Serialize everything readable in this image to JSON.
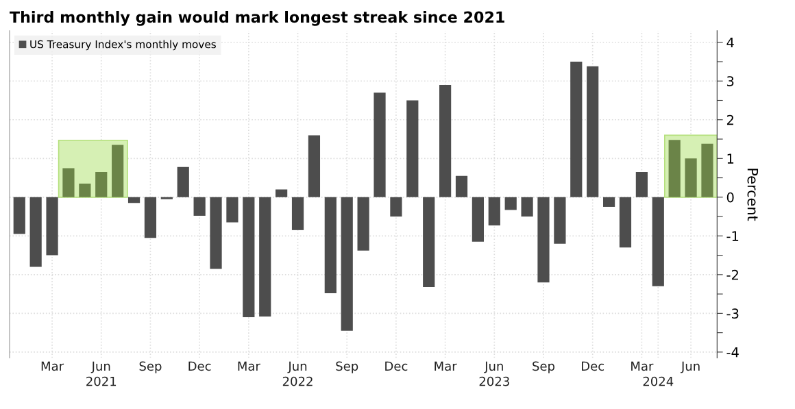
{
  "chart_data": {
    "type": "bar",
    "subtitle": "Third monthly gain would mark longest streak since 2021",
    "ylabel": "Percent",
    "categories": [
      null,
      null,
      "Mar",
      null,
      null,
      "Jun\n2021",
      null,
      null,
      "Sep",
      null,
      null,
      "Dec",
      null,
      null,
      "Mar",
      null,
      null,
      "Jun\n2022",
      null,
      null,
      "Sep",
      null,
      null,
      "Dec",
      null,
      null,
      "Mar",
      null,
      null,
      "Jun\n2023",
      null,
      null,
      "Sep",
      null,
      null,
      "Dec",
      null,
      null,
      "Mar",
      "\n2024",
      null,
      "Jun",
      null
    ],
    "series": [
      {
        "name": "US Treasury Index's monthly moves",
        "color": "#4d4d4d",
        "values": [
          -0.95,
          -1.8,
          -1.5,
          0.75,
          0.35,
          0.65,
          1.35,
          -0.15,
          -1.05,
          -0.05,
          0.78,
          -0.48,
          -1.85,
          -0.65,
          -3.1,
          -3.08,
          0.2,
          -0.85,
          1.6,
          -2.48,
          -3.45,
          -1.38,
          2.7,
          -0.5,
          2.5,
          -2.32,
          2.9,
          0.55,
          -1.15,
          -0.73,
          -0.33,
          -0.5,
          -2.2,
          -1.2,
          3.5,
          3.38,
          -0.25,
          -1.3,
          0.65,
          -2.3,
          1.48,
          1.0,
          1.38
        ],
        "colors": [
          "#4d4d4d",
          "#4d4d4d",
          "#4d4d4d",
          "#6b8448",
          "#6b8448",
          "#6b8448",
          "#6b8448",
          "#4d4d4d",
          "#4d4d4d",
          "#4d4d4d",
          "#4d4d4d",
          "#4d4d4d",
          "#4d4d4d",
          "#4d4d4d",
          "#4d4d4d",
          "#4d4d4d",
          "#4d4d4d",
          "#4d4d4d",
          "#4d4d4d",
          "#4d4d4d",
          "#4d4d4d",
          "#4d4d4d",
          "#4d4d4d",
          "#4d4d4d",
          "#4d4d4d",
          "#4d4d4d",
          "#4d4d4d",
          "#4d4d4d",
          "#4d4d4d",
          "#4d4d4d",
          "#4d4d4d",
          "#4d4d4d",
          "#4d4d4d",
          "#4d4d4d",
          "#4d4d4d",
          "#4d4d4d",
          "#4d4d4d",
          "#4d4d4d",
          "#4d4d4d",
          "#4d4d4d",
          "#6b8448",
          "#6b8448",
          "#6b8448"
        ]
      }
    ],
    "ylim": [
      -4.15,
      4.3
    ],
    "yticks": [
      -4,
      {
        "value": -3.5,
        "label": null
      },
      -3,
      {
        "value": -2.5,
        "label": null
      },
      -2,
      {
        "value": -1.5,
        "label": null
      },
      -1,
      {
        "value": -0.5,
        "label": null
      },
      0,
      {
        "value": 0.5,
        "label": null
      },
      1,
      {
        "value": 1.5,
        "label": null
      },
      2,
      {
        "value": 2.5,
        "label": null
      },
      3,
      {
        "value": 3.5,
        "label": null
      },
      4
    ],
    "grid": true,
    "legend": "top left"
  }
}
